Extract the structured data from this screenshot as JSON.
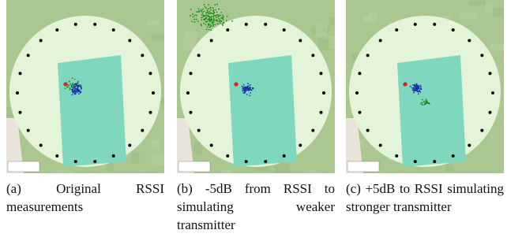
{
  "figure": {
    "panels": [
      {
        "label": "(a)",
        "caption": "Original RSSI measurements"
      },
      {
        "label": "(b)",
        "caption": "-5dB from RSSI to simulating weaker transmitter"
      },
      {
        "label": "(c)",
        "caption": "+5dB to RSSI simulating stronger transmitter"
      }
    ]
  }
}
